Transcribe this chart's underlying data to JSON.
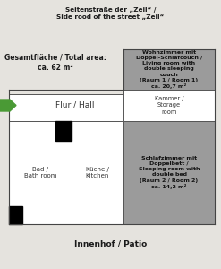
{
  "bg_color": "#e5e3de",
  "top_label": "Seitenstraße der „Zeil“ /\nSide rood of the street „Zeil“",
  "bottom_label": "Innenhof / Patio",
  "total_area_label": "Gesamtfläche / Total area:\nca. 62 m²",
  "gray_color": "#9b9b9b",
  "white_color": "#ffffff",
  "black_color": "#000000",
  "green_color": "#4a9a35",
  "room1_text": "Wohnzimmer mit\nDoppel-Schlafcouch /\nLiving room with\ndouble sleeping\ncouch\n(Raum 1 / Room 1)\nca. 20,7 m²",
  "hall_text": "Flur / Hall",
  "storage_text": "Kammer /\nStorage\nroom",
  "room2_text": "Schlafzimmer mit\nDoppelbett /\nSleeping room with\ndouble bed\n(Raum 2 / Room 2)\nca. 14,2 m²",
  "bath_text": "Bad /\nBath room",
  "kitchen_text": "Küche /\nKitchen"
}
